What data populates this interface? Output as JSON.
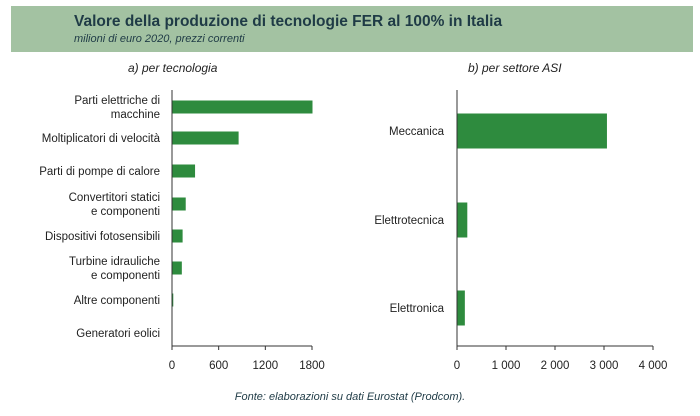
{
  "header": {
    "title": "Valore della produzione di tecnologie FER al 100% in Italia",
    "subtitle": "milioni di euro 2020, prezzi correnti"
  },
  "source": "Fonte: elaborazioni su dati Eurostat (Prodcom).",
  "colors": {
    "bar": "#2e8b3e",
    "header_bg": "#a3c2a2",
    "axis": "#333333"
  },
  "chart_data": [
    {
      "type": "bar",
      "orientation": "horizontal",
      "title": "a) per tecnologia",
      "categories": [
        [
          "Parti elettriche di",
          "macchine"
        ],
        [
          "Moltiplicatori di velocità"
        ],
        [
          "Parti di pompe di calore"
        ],
        [
          "Convertitori statici",
          "e componenti"
        ],
        [
          "Dispositivi fotosensibili"
        ],
        [
          "Turbine idrauliche",
          "e componenti"
        ],
        [
          "Altre componenti"
        ],
        [
          "Generatori eolici"
        ]
      ],
      "values": [
        1800,
        850,
        290,
        170,
        130,
        120,
        10,
        0
      ],
      "xlim": [
        0,
        1800
      ],
      "xticks": [
        "0",
        "600",
        "1200",
        "1800"
      ],
      "xtick_values": [
        0,
        600,
        1200,
        1800
      ],
      "grid": false,
      "legend": "none"
    },
    {
      "type": "bar",
      "orientation": "horizontal",
      "title": "b) per settore ASI",
      "categories": [
        [
          "Meccanica"
        ],
        [
          "Elettrotecnica"
        ],
        [
          "Elettronica"
        ]
      ],
      "values": [
        3050,
        200,
        150
      ],
      "xlim": [
        0,
        4000
      ],
      "xticks": [
        "0",
        "1 000",
        "2 000",
        "3 000",
        "4 000"
      ],
      "xtick_values": [
        0,
        1000,
        2000,
        3000,
        4000
      ],
      "grid": false,
      "legend": "none"
    }
  ]
}
